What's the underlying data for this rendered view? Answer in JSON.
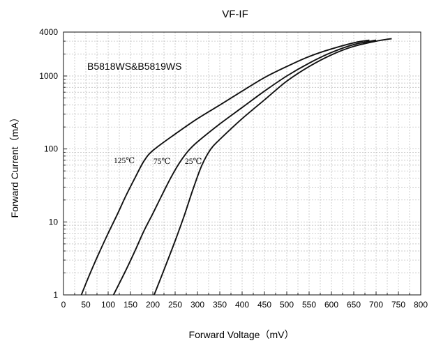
{
  "chart_data": {
    "type": "line",
    "title": "VF-IF",
    "annotation": "B5818WS&B5819WS",
    "xlabel": "Forward Voltage（mV）",
    "ylabel": "Forward Current（mA）",
    "xlim": [
      0,
      800
    ],
    "ylim": [
      1,
      4000
    ],
    "yscale": "log",
    "grid": true,
    "x_ticks": [
      0,
      50,
      100,
      150,
      200,
      250,
      300,
      350,
      400,
      450,
      500,
      550,
      600,
      650,
      700,
      750,
      800
    ],
    "y_ticks": [
      1,
      10,
      100,
      1000,
      4000
    ],
    "series": [
      {
        "name": "125℃",
        "x": [
          40,
          60,
          80,
          100,
          120,
          140,
          160,
          180,
          200,
          250,
          300,
          350,
          400,
          450,
          500,
          550,
          600,
          650,
          685
        ],
        "y": [
          1,
          2,
          3.8,
          7,
          12.5,
          23,
          40,
          68,
          95,
          160,
          260,
          400,
          620,
          950,
          1350,
          1850,
          2350,
          2850,
          3100
        ]
      },
      {
        "name": "75℃",
        "x": [
          112,
          140,
          160,
          180,
          200,
          220,
          240,
          260,
          280,
          300,
          350,
          400,
          450,
          500,
          550,
          600,
          650,
          700
        ],
        "y": [
          1,
          2.2,
          4,
          7.5,
          13,
          23,
          40,
          65,
          95,
          125,
          220,
          370,
          620,
          1000,
          1500,
          2100,
          2700,
          3100
        ]
      },
      {
        "name": "25℃",
        "x": [
          203,
          225,
          250,
          270,
          290,
          310,
          330,
          350,
          400,
          450,
          500,
          550,
          600,
          650,
          700,
          735
        ],
        "y": [
          1,
          2.2,
          5.5,
          12,
          28,
          60,
          100,
          135,
          260,
          470,
          850,
          1350,
          1950,
          2550,
          3000,
          3250
        ]
      }
    ]
  }
}
